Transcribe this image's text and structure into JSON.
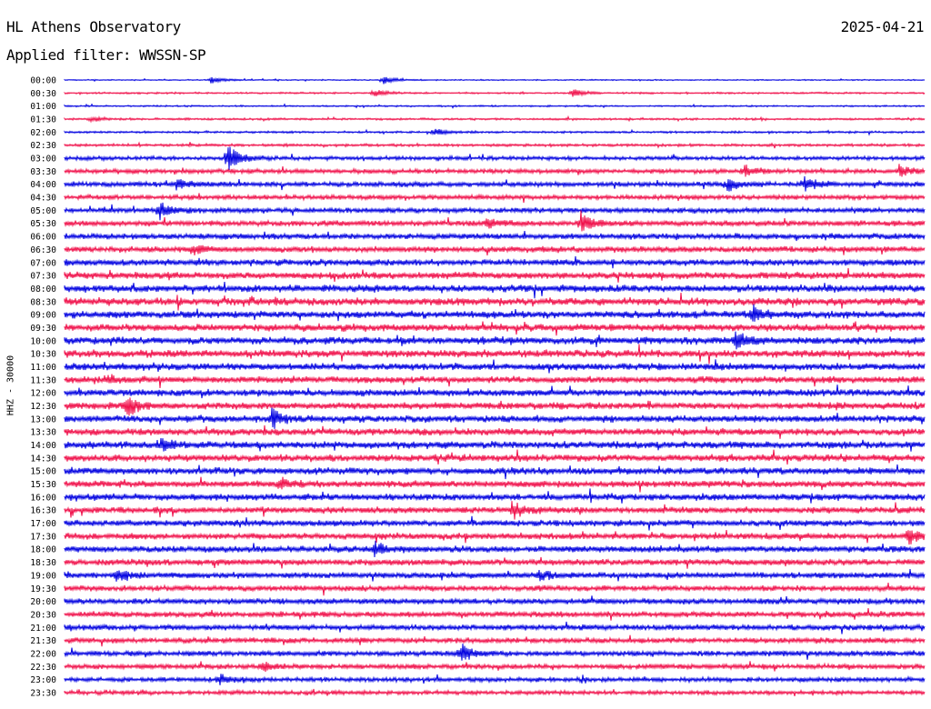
{
  "header": {
    "station": "HL Athens Observatory",
    "date": "2025-04-21",
    "filter": "Applied filter: WWSSN-SP"
  },
  "side_label": "HHZ - 30000",
  "colors": {
    "even_row": "#0000e0",
    "odd_row": "#f0104a"
  },
  "chart_data": {
    "type": "line",
    "title": "HL Athens Observatory",
    "subtitle": "Applied filter: WWSSN-SP",
    "ylabel": "HHZ - 30000",
    "xlabel": "",
    "grid": false,
    "legend": "none",
    "row_labels": [
      "00:00",
      "00:30",
      "01:00",
      "01:30",
      "02:00",
      "02:30",
      "03:00",
      "03:30",
      "04:00",
      "04:30",
      "05:00",
      "05:30",
      "06:00",
      "06:30",
      "07:00",
      "07:30",
      "08:00",
      "08:30",
      "09:00",
      "09:30",
      "10:00",
      "10:30",
      "11:00",
      "11:30",
      "12:00",
      "12:30",
      "13:00",
      "13:30",
      "14:00",
      "14:30",
      "15:00",
      "15:30",
      "16:00",
      "16:30",
      "17:00",
      "17:30",
      "18:00",
      "18:30",
      "19:00",
      "19:30",
      "20:00",
      "20:30",
      "21:00",
      "21:30",
      "22:00",
      "22:30",
      "23:00",
      "23:30"
    ],
    "row_noise_level": [
      0.5,
      0.8,
      0.7,
      0.9,
      0.9,
      1.2,
      1.7,
      2.0,
      2.2,
      2.0,
      2.2,
      2.4,
      2.5,
      2.6,
      2.8,
      3.0,
      3.2,
      3.4,
      3.2,
      3.2,
      3.2,
      3.3,
      3.1,
      3.0,
      3.0,
      3.0,
      3.0,
      3.0,
      3.1,
      3.1,
      3.0,
      2.9,
      2.9,
      2.8,
      2.7,
      2.7,
      2.8,
      2.7,
      2.6,
      2.5,
      2.5,
      2.5,
      2.4,
      2.3,
      2.3,
      2.2,
      2.0,
      1.8
    ],
    "events": [
      {
        "row": 0,
        "t": 0.17,
        "amp": 4
      },
      {
        "row": 0,
        "t": 0.37,
        "amp": 5
      },
      {
        "row": 1,
        "t": 0.36,
        "amp": 4
      },
      {
        "row": 1,
        "t": 0.59,
        "amp": 5
      },
      {
        "row": 3,
        "t": 0.03,
        "amp": 3
      },
      {
        "row": 4,
        "t": 0.43,
        "amp": 4
      },
      {
        "row": 6,
        "t": 0.19,
        "amp": 16
      },
      {
        "row": 7,
        "t": 0.79,
        "amp": 6
      },
      {
        "row": 7,
        "t": 0.97,
        "amp": 6
      },
      {
        "row": 8,
        "t": 0.13,
        "amp": 6
      },
      {
        "row": 8,
        "t": 0.77,
        "amp": 7
      },
      {
        "row": 8,
        "t": 0.86,
        "amp": 8
      },
      {
        "row": 10,
        "t": 0.11,
        "amp": 8
      },
      {
        "row": 11,
        "t": 0.49,
        "amp": 5
      },
      {
        "row": 11,
        "t": 0.6,
        "amp": 12
      },
      {
        "row": 13,
        "t": 0.15,
        "amp": 5
      },
      {
        "row": 18,
        "t": 0.8,
        "amp": 8
      },
      {
        "row": 20,
        "t": 0.78,
        "amp": 9
      },
      {
        "row": 23,
        "t": 0.05,
        "amp": 5
      },
      {
        "row": 25,
        "t": 0.07,
        "amp": 13
      },
      {
        "row": 26,
        "t": 0.24,
        "amp": 10
      },
      {
        "row": 28,
        "t": 0.11,
        "amp": 6
      },
      {
        "row": 31,
        "t": 0.25,
        "amp": 6
      },
      {
        "row": 33,
        "t": 0.52,
        "amp": 9
      },
      {
        "row": 35,
        "t": 0.98,
        "amp": 9
      },
      {
        "row": 36,
        "t": 0.36,
        "amp": 7
      },
      {
        "row": 38,
        "t": 0.06,
        "amp": 6
      },
      {
        "row": 38,
        "t": 0.55,
        "amp": 6
      },
      {
        "row": 44,
        "t": 0.46,
        "amp": 11
      },
      {
        "row": 45,
        "t": 0.23,
        "amp": 5
      },
      {
        "row": 46,
        "t": 0.18,
        "amp": 5
      }
    ]
  }
}
